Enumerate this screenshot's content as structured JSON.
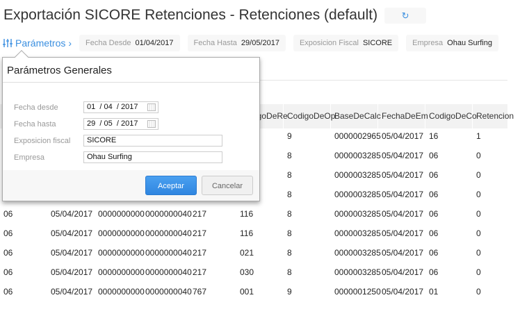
{
  "header": {
    "title": "Exportación SICORE Retenciones - Retenciones (default)",
    "refresh_icon": "refresh-icon"
  },
  "filters": {
    "params_label": "Parámetros",
    "chips": [
      {
        "key": "Fecha Desde",
        "value": "01/04/2017"
      },
      {
        "key": "Fecha Hasta",
        "value": "29/05/2017"
      },
      {
        "key": "Exposicion Fiscal",
        "value": "SICORE"
      },
      {
        "key": "Empresa",
        "value": "Ohau Surfing"
      }
    ]
  },
  "table": {
    "headers": [
      "",
      "",
      "",
      "",
      "",
      "CodigoDeRe",
      "CodigoDeOp",
      "BaseDeCalc",
      "FechaDeEm",
      "CodigoDeCo",
      "Retencion"
    ],
    "rows": [
      [
        "",
        "",
        "",
        "",
        "",
        "",
        "9",
        "0000002965",
        "05/04/2017",
        "16",
        "1"
      ],
      [
        "",
        "",
        "",
        "",
        "",
        "",
        "8",
        "0000003285",
        "05/04/2017",
        "06",
        "0"
      ],
      [
        "",
        "",
        "",
        "",
        "",
        "",
        "8",
        "0000003285",
        "05/04/2017",
        "06",
        "0"
      ],
      [
        "",
        "",
        "",
        "",
        "",
        "",
        "8",
        "0000003285",
        "05/04/2017",
        "06",
        "0"
      ],
      [
        "06",
        "05/04/2017",
        "0000000000",
        "0000000040",
        "217",
        "116",
        "8",
        "0000003285",
        "05/04/2017",
        "06",
        "0"
      ],
      [
        "06",
        "05/04/2017",
        "0000000000",
        "0000000040",
        "217",
        "116",
        "8",
        "0000003285",
        "05/04/2017",
        "06",
        "0"
      ],
      [
        "06",
        "05/04/2017",
        "0000000000",
        "0000000040",
        "217",
        "021",
        "8",
        "0000003285",
        "05/04/2017",
        "06",
        "0"
      ],
      [
        "06",
        "05/04/2017",
        "0000000000",
        "0000000040",
        "217",
        "030",
        "8",
        "0000003285",
        "05/04/2017",
        "06",
        "0"
      ],
      [
        "06",
        "05/04/2017",
        "0000000000",
        "0000000040",
        "767",
        "001",
        "9",
        "0000001250",
        "05/04/2017",
        "01",
        "0"
      ]
    ]
  },
  "dialog": {
    "title": "Parámetros Generales",
    "fecha_desde_label": "Fecha desde",
    "fecha_desde": {
      "d": "01",
      "m": "04",
      "y": "2017"
    },
    "fecha_hasta_label": "Fecha hasta",
    "fecha_hasta": {
      "d": "29",
      "m": "05",
      "y": "2017"
    },
    "exposicion_label": "Exposicion fiscal",
    "exposicion": "SICORE",
    "empresa_label": "Empresa",
    "empresa": "Ohau Surfing",
    "accept": "Aceptar",
    "cancel": "Cancelar"
  },
  "colors": {
    "accent": "#3a8fe0"
  }
}
